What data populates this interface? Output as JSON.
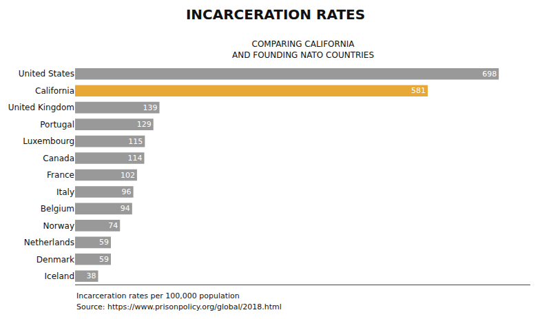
{
  "chart_data": {
    "type": "bar",
    "orientation": "horizontal",
    "title": "INCARCERATION RATES",
    "subtitle": "COMPARING CALIFORNIA\nAND FOUNDING NATO COUNTRIES",
    "categories": [
      "United States",
      "California",
      "United Kingdom",
      "Portugal",
      "Luxembourg",
      "Canada",
      "France",
      "Italy",
      "Belgium",
      "Norway",
      "Netherlands",
      "Denmark",
      "Iceland"
    ],
    "values": [
      698,
      581,
      139,
      129,
      115,
      114,
      102,
      96,
      94,
      74,
      59,
      59,
      38
    ],
    "colors": [
      "#999999",
      "#E8A838",
      "#999999",
      "#999999",
      "#999999",
      "#999999",
      "#999999",
      "#999999",
      "#999999",
      "#999999",
      "#999999",
      "#999999",
      "#999999"
    ],
    "xlim": [
      0,
      750
    ],
    "data_labels": true,
    "tick_labels": "y",
    "grid": false,
    "annotations": [
      "Incarceration rates per 100,000 population",
      "Source: https://www.prisonpolicy.org/global/2018.html"
    ]
  }
}
